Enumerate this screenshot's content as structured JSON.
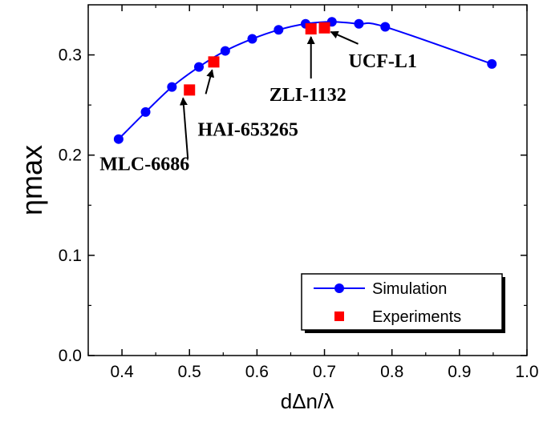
{
  "chart_data": {
    "type": "scatter",
    "title": "",
    "xlabel": "dΔn/λ",
    "ylabel": "ηmax",
    "xlim": [
      0.35,
      1.0
    ],
    "ylim": [
      0.0,
      0.35
    ],
    "x_ticks": [
      "0.4",
      "0.5",
      "0.6",
      "0.7",
      "0.8",
      "0.9",
      "1.0"
    ],
    "y_ticks": [
      "0.0",
      "0.1",
      "0.2",
      "0.3"
    ],
    "grid": false,
    "legend_position": "bottom-right",
    "series": [
      {
        "name": "Simulation",
        "style": "line-with-circles",
        "color": "#0000ff",
        "x": [
          0.395,
          0.435,
          0.474,
          0.514,
          0.553,
          0.593,
          0.632,
          0.672,
          0.711,
          0.751,
          0.79,
          0.948
        ],
        "y": [
          0.216,
          0.243,
          0.268,
          0.288,
          0.304,
          0.316,
          0.325,
          0.331,
          0.333,
          0.331,
          0.328,
          0.291
        ]
      },
      {
        "name": "Experiments",
        "style": "squares",
        "color": "#ff0000",
        "x": [
          0.5,
          0.536,
          0.68,
          0.7
        ],
        "y": [
          0.265,
          0.293,
          0.326,
          0.327
        ]
      }
    ],
    "annotations": [
      {
        "text": "MLC-6686",
        "x": 0.5,
        "y": 0.265
      },
      {
        "text": "HAI-653265",
        "x": 0.536,
        "y": 0.293
      },
      {
        "text": "ZLI-1132",
        "x": 0.68,
        "y": 0.326
      },
      {
        "text": "UCF-L1",
        "x": 0.7,
        "y": 0.327
      }
    ]
  }
}
